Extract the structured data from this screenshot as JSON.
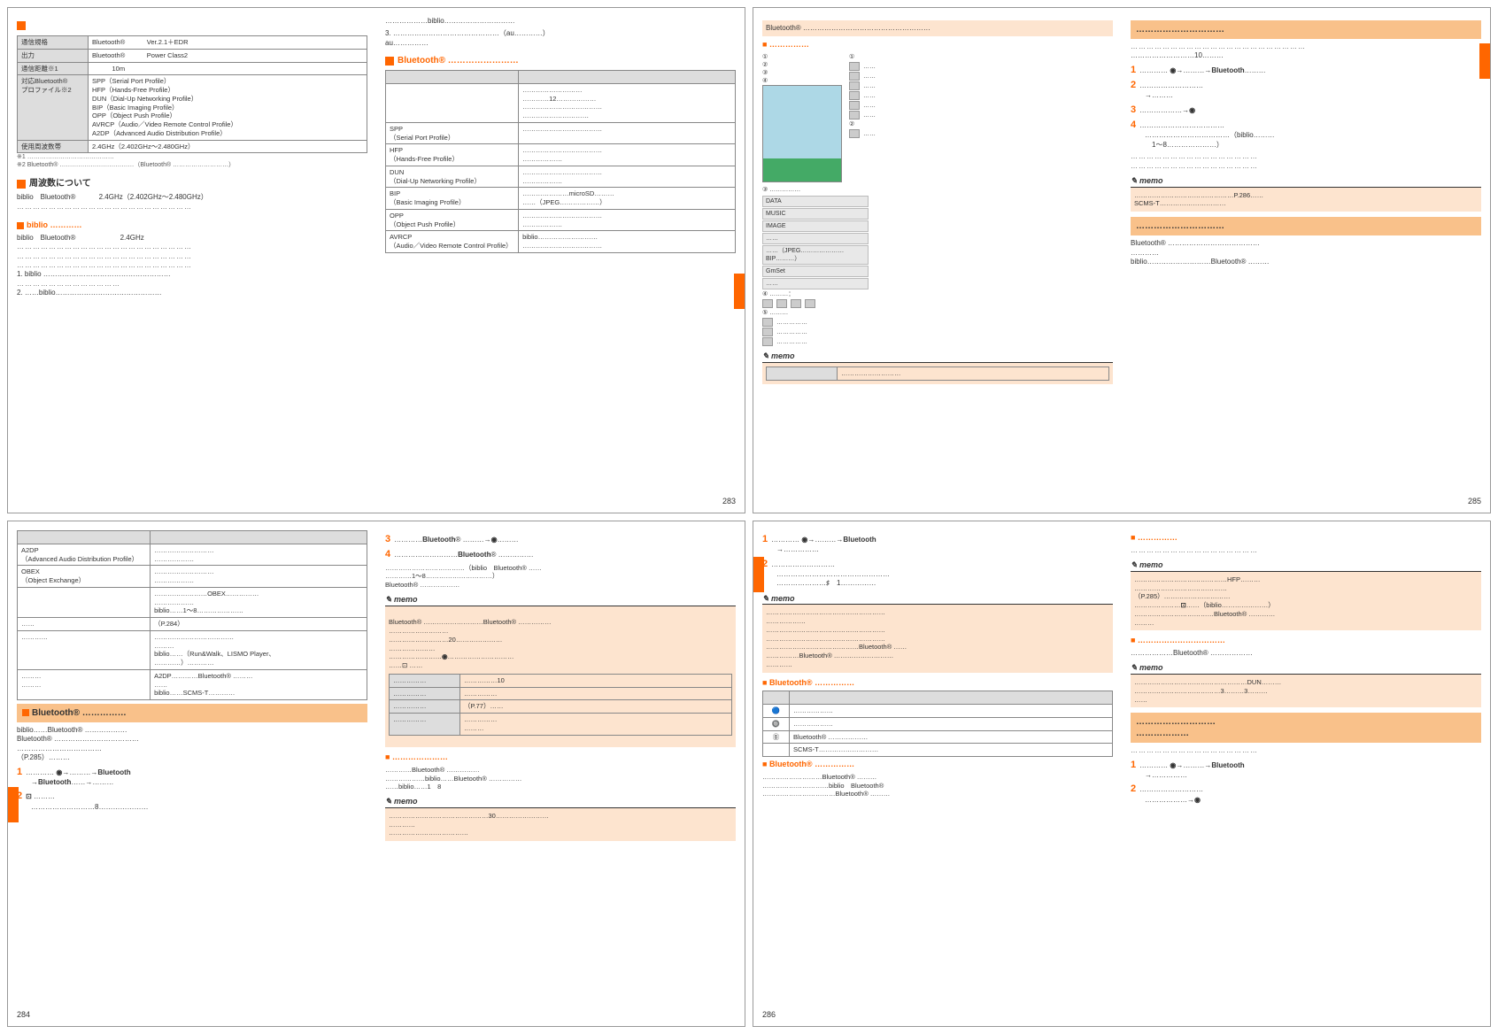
{
  "pages": {
    "p283": {
      "num": "283",
      "spec_table": {
        "rows": [
          {
            "l": "通信規格",
            "r": "Bluetooth® 　　　Ver.2.1＋EDR"
          },
          {
            "l": "出力",
            "r": "Bluetooth® 　　　Power Class2"
          },
          {
            "l": "通信距離※1",
            "r": "　　　10m"
          },
          {
            "l": "対応Bluetooth®\nプロファイル※2",
            "r": "SPP（Serial Port Profile）\nHFP（Hands-Free Profile）\nDUN（Dial-Up Networking Profile）\nBIP（Basic Imaging Profile）\nOPP（Object Push Profile）\nAVRCP（Audio／Video Remote Control Profile）\nA2DP（Advanced Audio Distribution Profile）"
          },
          {
            "l": "使用周波数帯",
            "r": "2.4GHz（2.402GHz～2.480GHz）"
          }
        ],
        "notes": [
          "※1 ……………………………………",
          "※2 Bluetooth® ………………………………（Bluetooth® ………………………）"
        ]
      },
      "h1": "周波数について",
      "freq_text": "biblio　Bluetooth® 　　　2.4GHz（2.402GHz～2.480GHz）",
      "h2": "biblio",
      "h2_text": "biblio　Bluetooth® 　　　　　　2.4GHz",
      "list": [
        "1. biblio ………………………………………………",
        "2. ……biblio………………………………………"
      ],
      "top_r": "………………biblio…………………………",
      "top_r2": "3. ………………………………………（au…………）\nau……………",
      "h3": "Bluetooth®",
      "profile_table": [
        {
          "l": "　",
          "r": "　"
        },
        {
          "l": "",
          "r": "………………………\n…………12………………\n………………………………\n…………………………"
        },
        {
          "l": "SPP\n（Serial Port Profile）",
          "r": "………………………………"
        },
        {
          "l": "HFP\n（Hands-Free Profile）",
          "r": "………………………………\n………………"
        },
        {
          "l": "DUN\n（Dial-Up Networking Profile）",
          "r": "………………………………\n………………"
        },
        {
          "l": "BIP\n（Basic Imaging Profile）",
          "r": "…………………microSD………\n……（JPEG………………）"
        },
        {
          "l": "OPP\n（Object Push Profile）",
          "r": "………………………………\n………………"
        },
        {
          "l": "AVRCP\n（Audio／Video Remote Control Profile）",
          "r": "biblio………………………\n………………………………"
        }
      ]
    },
    "p285": {
      "num": "285",
      "orange_top": "Bluetooth® ………………………………………………",
      "sub1": "■ ……………",
      "strips": [
        "DATA",
        "MUSIC",
        "IMAGE",
        "……",
        "……（JPEG…………………BIP………）",
        "GmSet",
        "……"
      ],
      "sub_icons": "④ ………：",
      "sub_s": "⑤ ………",
      "memo1": "memo",
      "orange_title": "…………………………",
      "steps_pre": "………………………10………",
      "steps": [
        {
          "n": "1",
          "t": "………… <b>◉</b>→………→<b>Bluetooth</b>………"
        },
        {
          "n": "2",
          "t": "………………………\n→………"
        },
        {
          "n": "3",
          "t": "………………→<b>◉</b>"
        },
        {
          "n": "4",
          "t": "………………………………\n………………………………（biblio………\n　1～8…………………）"
        }
      ],
      "memo2_body": "………………………………………P.286……\nSCMS-T…………………………",
      "orange_title2": "…………………………",
      "tail": "Bluetooth® …………………………………\n…………\nbiblio………………………Bluetooth® ………"
    },
    "p284": {
      "num": "284",
      "table": [
        {
          "l": "A2DP\n（Advanced Audio Distribution Profile）",
          "r": "………………………\n………………"
        },
        {
          "l": "OBEX\n（Object Exchange）",
          "r": "………………………\n………………"
        },
        {
          "l": "",
          "r": "……………………OBEX……………\n………………\nbiblio……1～8…………………"
        },
        {
          "l": "……",
          "r": "（P.284）"
        },
        {
          "l": "…………",
          "r": "………………………………\n………\nbiblio……（Run&Walk、LISMO Player、\n…………）…………"
        },
        {
          "l": "………\n………",
          "r": "A2DP…………Bluetooth® ………\n……\nbiblio……SCMS-T…………"
        }
      ],
      "orange_title": "Bluetooth®",
      "under": "biblio……Bluetooth® ………………\nBluetooth® ………………………………\n………………………………\n（P.285）………",
      "steps": [
        {
          "n": "1",
          "t": "………… <b>◉</b>→………→<b>Bluetooth</b>\n→<b>Bluetooth</b>……→………"
        },
        {
          "n": "2",
          "t": "<b>⊡</b> ………\n………………………8…………………"
        }
      ],
      "r_steps": [
        {
          "n": "3",
          "t": "…………<b>Bluetooth</b>® ………→<b>◉</b>………"
        },
        {
          "n": "4",
          "t": "………………………<b>Bluetooth</b>® ……………"
        }
      ],
      "r_under": "………………………………（biblio　Bluetooth® ……\n…………1～8…………………………）\nBluetooth® ………………",
      "memo1_body": "Bluetooth® ………………………Bluetooth® ……………\n………………………\n………………………20…………………\n…………………\n……………………<b>◉</b>…………………………\n……⊡ ……",
      "grid": [
        [
          "……………",
          "……………10"
        ],
        [
          "……………",
          "……………"
        ],
        [
          "……………",
          "（P.77）……"
        ],
        [
          "……………",
          "……………\n………"
        ]
      ],
      "sub": "■ …………………",
      "sub_txt": "…………Bluetooth® ……………\n………………biblio……Bluetooth® ……………\n……biblio……1　8",
      "memo2_body": "………………………………………30……………………\n…………\n………………………………"
    },
    "p286": {
      "num": "286",
      "steps": [
        {
          "n": "1",
          "t": "………… <b>◉</b>→………→<b>Bluetooth</b>\n→……………"
        },
        {
          "n": "2",
          "t": "………………………\n…………………………………………\n…………………♯　1……………"
        }
      ],
      "memo1_body": "………………………………………………\n………………\n………………………………………………\n………………………………………………\n……………………………………Bluetooth® ……\n……………Bluetooth® ………………………\n…………",
      "sub1": "Bluetooth®",
      "icon_table": [
        [
          "　",
          "　"
        ],
        [
          "🔵",
          "………………"
        ],
        [
          "🔘",
          "………………"
        ],
        [
          "Ⓑ",
          "Bluetooth® ………………"
        ],
        [
          "　",
          "SCMS-T………………………"
        ]
      ],
      "sub2": "Bluetooth®",
      "sub2_txt": "………………………Bluetooth® ………\n…………………………biblio　Bluetooth® \n……………………………Bluetooth® ………",
      "r_sub1": "■ ……………",
      "r_memo1": "……………………………………HFP………\n……………………………………\n（P.285）…………………………\n…………………<b>⊡</b>……（biblio…………………）\n………………………………Bluetooth® …………\n………",
      "r_sub2": "■ ……………………………",
      "r_sub2_t": "………………Bluetooth® ………………",
      "r_memo2": "……………………………………………DUN………\n…………………………………3………3………\n……",
      "orange_title": "………………………\n………………",
      "r_steps": [
        {
          "n": "1",
          "t": "………… <b>◉</b>→………→<b>Bluetooth</b>\n→……………"
        },
        {
          "n": "2",
          "t": "………………………\n………………→<b>◉</b>"
        }
      ]
    }
  }
}
